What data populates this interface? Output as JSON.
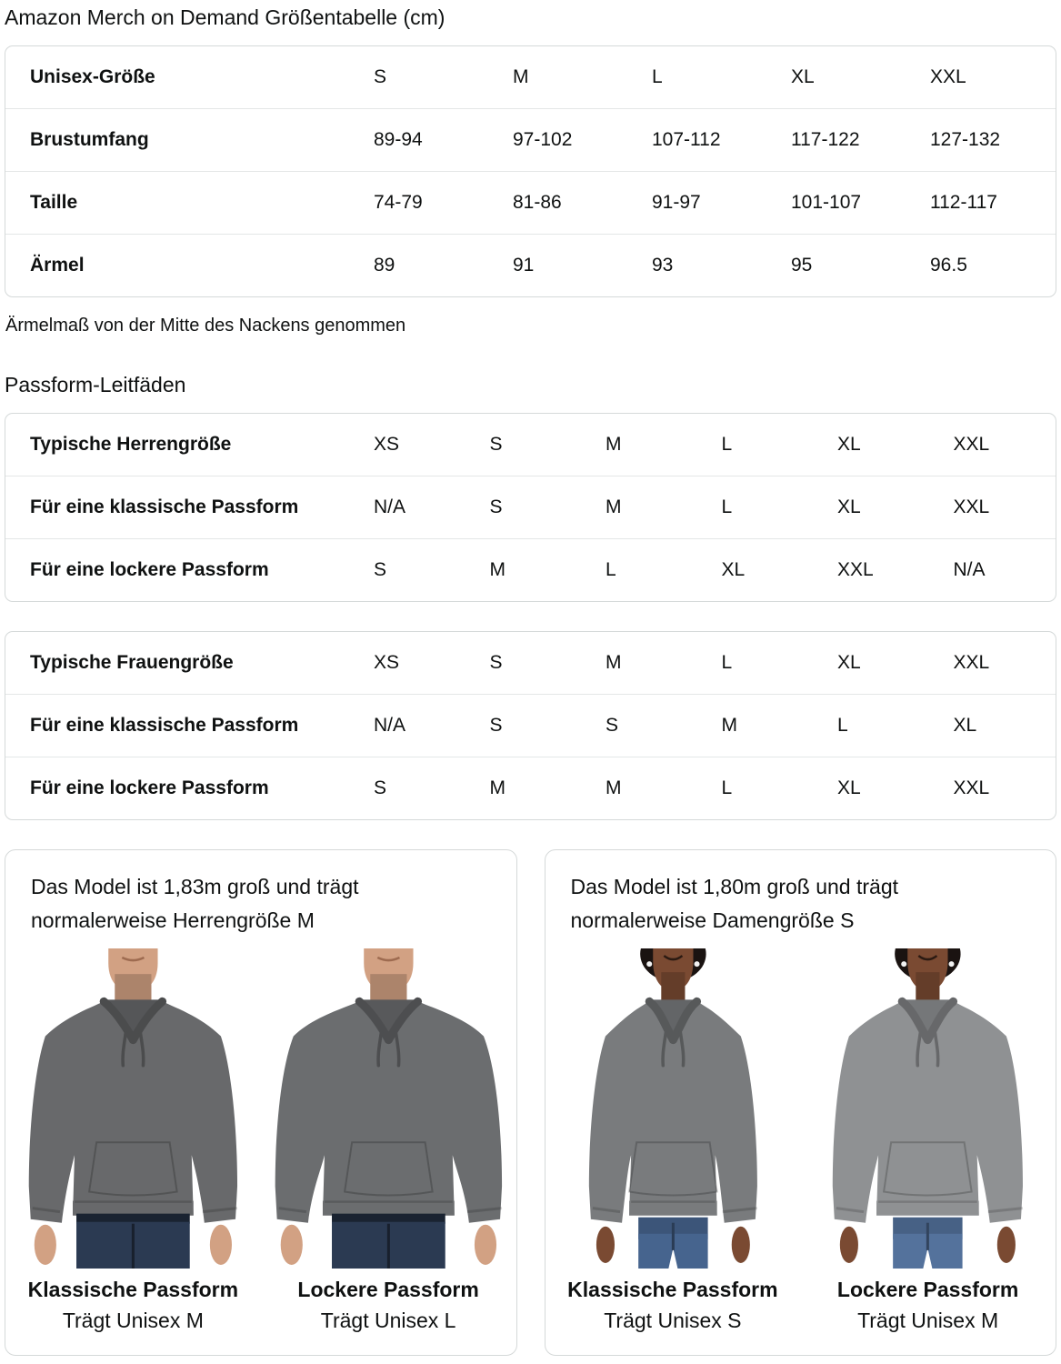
{
  "title": "Amazon Merch on Demand Größentabelle (cm)",
  "size_table": {
    "rows": [
      {
        "label": "Unisex-Größe",
        "values": [
          "S",
          "M",
          "L",
          "XL",
          "XXL"
        ]
      },
      {
        "label": "Brustumfang",
        "values": [
          "89-94",
          "97-102",
          "107-112",
          "117-122",
          "127-132"
        ]
      },
      {
        "label": "Taille",
        "values": [
          "74-79",
          "81-86",
          "91-97",
          "101-107",
          "112-117"
        ]
      },
      {
        "label": "Ärmel",
        "values": [
          "89",
          "91",
          "93",
          "95",
          "96.5"
        ]
      }
    ]
  },
  "sleeve_note": "Ärmelmaß von der Mitte des Nackens genommen",
  "fit_guides_heading": "Passform-Leitfäden",
  "mens_fit_table": {
    "rows": [
      {
        "label": "Typische Herrengröße",
        "values": [
          "XS",
          "S",
          "M",
          "L",
          "XL",
          "XXL"
        ]
      },
      {
        "label": "Für eine klassische Passform",
        "values": [
          "N/A",
          "S",
          "M",
          "L",
          "XL",
          "XXL"
        ]
      },
      {
        "label": "Für eine lockere Passform",
        "values": [
          "S",
          "M",
          "L",
          "XL",
          "XXL",
          "N/A"
        ]
      }
    ]
  },
  "womens_fit_table": {
    "rows": [
      {
        "label": "Typische Frauengröße",
        "values": [
          "XS",
          "S",
          "M",
          "L",
          "XL",
          "XXL"
        ]
      },
      {
        "label": "Für eine klassische Passform",
        "values": [
          "N/A",
          "S",
          "S",
          "M",
          "L",
          "XL"
        ]
      },
      {
        "label": "Für eine lockere Passform",
        "values": [
          "S",
          "M",
          "M",
          "L",
          "XL",
          "XXL"
        ]
      }
    ]
  },
  "model_cards": [
    {
      "description": "Das Model ist 1,83m groß und trägt normalerweise Herrengröße M",
      "figures": [
        {
          "fit_label": "Klassische Passform",
          "size_label": "Trägt Unisex M",
          "model": "male",
          "fit": "classic",
          "colors": {
            "hoodie": "#68696b",
            "jeans": "#2b3a52",
            "skin": "#d2a183"
          }
        },
        {
          "fit_label": "Lockere Passform",
          "size_label": "Trägt Unisex L",
          "model": "male",
          "fit": "loose",
          "colors": {
            "hoodie": "#6b6d6f",
            "jeans": "#2b3a52",
            "skin": "#d2a183"
          }
        }
      ]
    },
    {
      "description": "Das Model ist 1,80m groß und trägt normalerweise Damengröße S",
      "figures": [
        {
          "fit_label": "Klassische Passform",
          "size_label": "Trägt Unisex S",
          "model": "female",
          "fit": "classic",
          "colors": {
            "hoodie": "#797b7d",
            "jeans": "#46648e",
            "skin": "#7a4a32",
            "hair": "#1a1311"
          }
        },
        {
          "fit_label": "Lockere Passform",
          "size_label": "Trägt Unisex M",
          "model": "female",
          "fit": "loose",
          "colors": {
            "hoodie": "#8f9193",
            "jeans": "#54729c",
            "skin": "#7a4a32",
            "hair": "#1a1311"
          }
        }
      ]
    }
  ],
  "colors": {
    "text": "#0f1111",
    "card_border": "#d5d9d9",
    "row_divider": "#e4e7e7"
  }
}
